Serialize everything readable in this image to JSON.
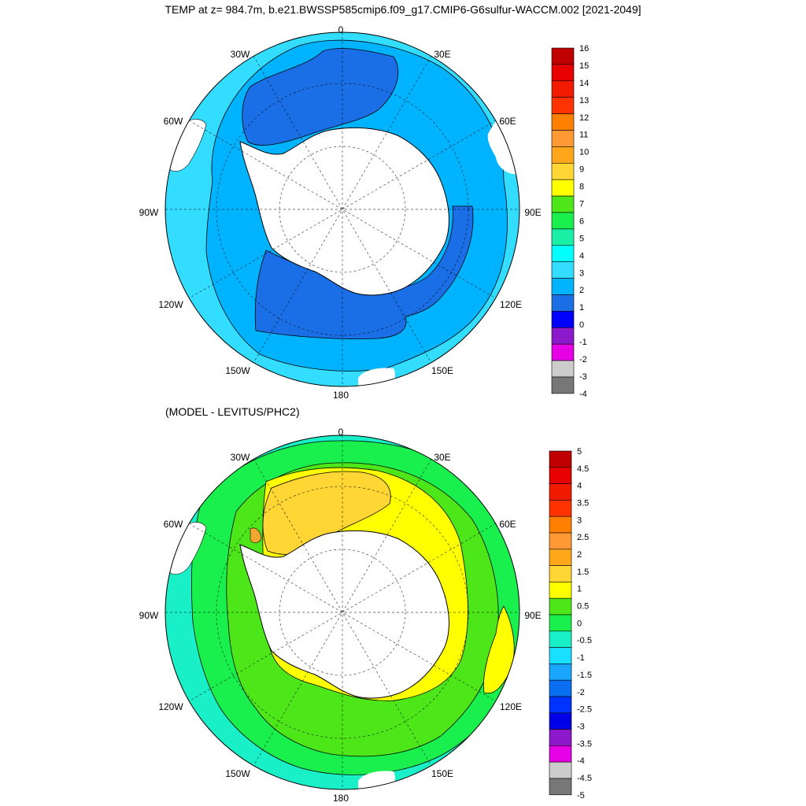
{
  "title": "TEMP at z= 984.7m, b.e21.BWSSP585cmip6.f09_g17.CMIP6-G6sulfur-WACCM.002 [2021-2049]",
  "chart_data": [
    {
      "type": "heatmap",
      "title": "TEMP at z= 984.7m, b.e21.BWSSP585cmip6.f09_g17.CMIP6-G6sulfur-WACCM.002 [2021-2049]",
      "projection": "south polar stereographic",
      "longitude_labels": [
        "0",
        "30E",
        "60E",
        "90E",
        "120E",
        "150E",
        "180",
        "150W",
        "120W",
        "90W",
        "60W",
        "30W"
      ],
      "colorbar": {
        "levels": [
          "16",
          "15",
          "14",
          "13",
          "12",
          "11",
          "10",
          "9",
          "8",
          "7",
          "6",
          "5",
          "4",
          "3",
          "2",
          "1",
          "0",
          "-1",
          "-2",
          "-3",
          "-4"
        ],
        "colors": [
          "#c00000",
          "#e60000",
          "#f21a00",
          "#ff3300",
          "#ff8000",
          "#ff9933",
          "#ffa61a",
          "#ffd633",
          "#ffff00",
          "#4de619",
          "#19f04d",
          "#19f0a6",
          "#00ffff",
          "#33ddff",
          "#00b3ff",
          "#1a6ee6",
          "#0000ff",
          "#8c19cc",
          "#e600e6",
          "#cccccc",
          "#777777"
        ]
      },
      "regions": [
        {
          "value_range": [
            1,
            2
          ],
          "description_color": "#1a6ee6"
        },
        {
          "value_range": [
            2,
            3
          ],
          "description_color": "#00b3ff"
        },
        {
          "value_range": [
            3,
            4
          ],
          "description_color": "#33ddff"
        }
      ]
    },
    {
      "type": "heatmap",
      "title": "(MODEL - LEVITUS/PHC2)",
      "projection": "south polar stereographic",
      "longitude_labels": [
        "0",
        "30E",
        "60E",
        "90E",
        "120E",
        "150E",
        "180",
        "150W",
        "120W",
        "90W",
        "60W",
        "30W"
      ],
      "colorbar": {
        "levels": [
          "5",
          "4.5",
          "4",
          "3.5",
          "3",
          "2.5",
          "2",
          "1.5",
          "1",
          "0.5",
          "0",
          "-0.5",
          "-1",
          "-1.5",
          "-2",
          "-2.5",
          "-3",
          "-3.5",
          "-4",
          "-4.5",
          "-5"
        ],
        "colors": [
          "#c00000",
          "#e60000",
          "#f21a00",
          "#ff3300",
          "#ff8000",
          "#ff9933",
          "#ffa61a",
          "#ffd633",
          "#ffff00",
          "#4de619",
          "#19f04d",
          "#19f0c8",
          "#19e0ff",
          "#1aa6ff",
          "#0a6ef0",
          "#0033ff",
          "#0000e6",
          "#8c19cc",
          "#e600e6",
          "#cccccc",
          "#777777"
        ]
      },
      "regions": [
        {
          "value_range": [
            -1,
            -0.5
          ],
          "description_color": "#19f0c8"
        },
        {
          "value_range": [
            -0.5,
            0
          ],
          "description_color": "#19f04d"
        },
        {
          "value_range": [
            0,
            0.5
          ],
          "description_color": "#4de619"
        },
        {
          "value_range": [
            0.5,
            1
          ],
          "description_color": "#ffff00"
        },
        {
          "value_range": [
            1,
            1.5
          ],
          "description_color": "#ffd633"
        },
        {
          "value_range": [
            1.5,
            2
          ],
          "description_color": "#f0a830"
        }
      ]
    }
  ]
}
